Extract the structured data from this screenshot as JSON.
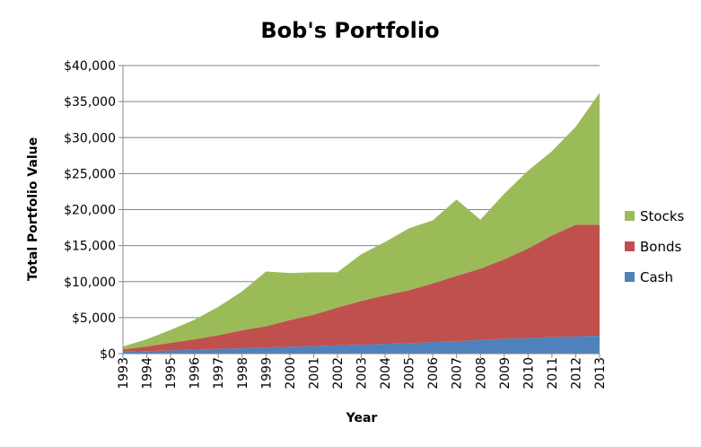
{
  "chart_data": {
    "type": "area",
    "stacked": true,
    "title": "Bob's Portfolio",
    "xlabel": "Year",
    "ylabel": "Total Portfolio Value",
    "ylim": [
      0,
      40000
    ],
    "yticks": [
      "$0",
      "$5,000",
      "$10,000",
      "$15,000",
      "$20,000",
      "$25,000",
      "$30,000",
      "$35,000",
      "$40,000"
    ],
    "ytick_values": [
      0,
      5000,
      10000,
      15000,
      20000,
      25000,
      30000,
      35000,
      40000
    ],
    "categories": [
      "1993",
      "1994",
      "1995",
      "1996",
      "1997",
      "1998",
      "1999",
      "2000",
      "2001",
      "2002",
      "2003",
      "2004",
      "2005",
      "2006",
      "2007",
      "2008",
      "2009",
      "2010",
      "2011",
      "2012",
      "2013"
    ],
    "grid": "horizontal",
    "legend_position": "right",
    "series": [
      {
        "name": "Cash",
        "color": "#4F81BD",
        "values": [
          250,
          350,
          450,
          550,
          650,
          750,
          850,
          950,
          1050,
          1150,
          1250,
          1350,
          1450,
          1600,
          1750,
          1900,
          2050,
          2150,
          2300,
          2400,
          2500
        ]
      },
      {
        "name": "Bonds",
        "color": "#C0504D",
        "values": [
          350,
          650,
          1050,
          1450,
          1900,
          2500,
          2950,
          3700,
          4350,
          5250,
          6050,
          6750,
          7350,
          8150,
          9050,
          9900,
          11050,
          12450,
          14100,
          15500,
          15400
        ]
      },
      {
        "name": "Stocks",
        "color": "#9BBB59",
        "values": [
          400,
          1000,
          1800,
          2700,
          3950,
          5400,
          7600,
          6550,
          5900,
          4900,
          6500,
          7400,
          8600,
          8750,
          10600,
          6800,
          9100,
          10800,
          11700,
          13600,
          18300
        ]
      }
    ],
    "legend_order": [
      "Stocks",
      "Bonds",
      "Cash"
    ]
  }
}
